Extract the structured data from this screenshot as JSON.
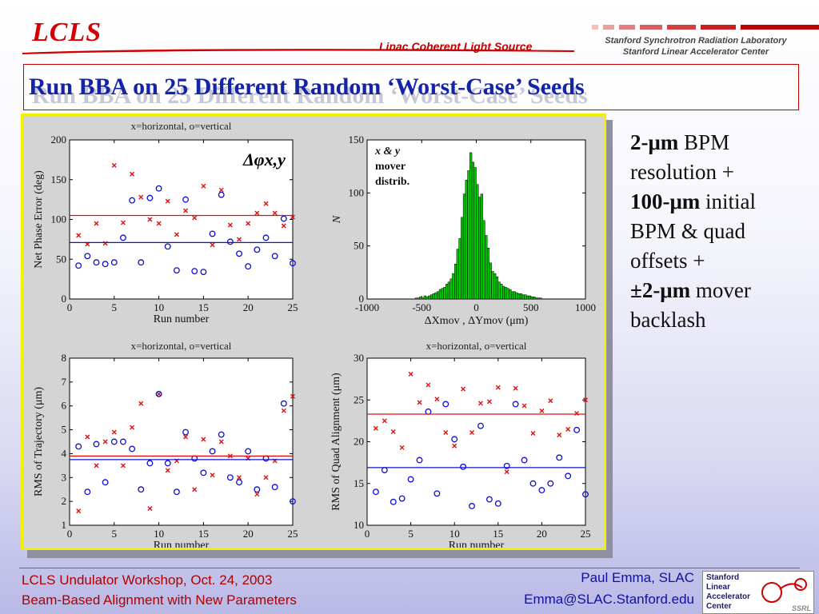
{
  "header": {
    "logo": "LCLS",
    "linac": "Linac Coherent Light Source",
    "ssrl_line1": "Stanford Synchrotron Radiation Laboratory",
    "ssrl_line2": "Stanford Linear Accelerator Center"
  },
  "slide_title": "Run BBA on 25 Different Random ‘Worst-Case’ Seeds",
  "right_text": {
    "l1_bold": "2-μm",
    "l1_rest": " BPM",
    "l2": "resolution +",
    "l3_bold": "100-μm",
    "l3_rest": " initial",
    "l4": "BPM & quad",
    "l5": "offsets +",
    "l6_bold": "±2-μm",
    "l6_rest": " mover",
    "l7": "backlash"
  },
  "footer": {
    "left1": "LCLS Undulator Workshop, Oct. 24, 2003",
    "left2": "Beam-Based Alignment with New Parameters",
    "right1": "Paul Emma, SLAC",
    "right2": "Emma@SLAC.Stanford.edu",
    "org_lines": [
      "Stanford",
      "Linear",
      "Accelerator",
      "Center"
    ],
    "ssrl_mark": "SSRL"
  },
  "colors": {
    "horizontal": "#e01010",
    "vertical": "#1010d0",
    "histogram": "#00cc00",
    "title": "#1424a8",
    "accent": "#c00000"
  },
  "chart_data": [
    {
      "type": "scatter",
      "title": "x=horizontal, o=vertical",
      "annotation": "Δφx,y",
      "xlabel": "Run number",
      "ylabel": "Net Phase Error (deg)",
      "xlim": [
        0,
        25
      ],
      "ylim": [
        0,
        200
      ],
      "xticks": [
        "0",
        "5",
        "10",
        "15",
        "20",
        "25"
      ],
      "yticks": [
        "0",
        "50",
        "100",
        "150",
        "200"
      ],
      "series": [
        {
          "marker": "x",
          "color": "#e01010",
          "x": [
            1,
            2,
            3,
            4,
            5,
            6,
            7,
            8,
            9,
            10,
            11,
            12,
            13,
            14,
            15,
            16,
            17,
            18,
            19,
            20,
            21,
            22,
            23,
            24,
            25
          ],
          "y": [
            80,
            69,
            95,
            70,
            168,
            96,
            157,
            128,
            100,
            95,
            123,
            81,
            111,
            102,
            142,
            68,
            137,
            93,
            75,
            95,
            108,
            120,
            108,
            92,
            103
          ]
        },
        {
          "marker": "o",
          "color": "#1010d0",
          "x": [
            1,
            2,
            3,
            4,
            5,
            6,
            7,
            8,
            9,
            10,
            11,
            12,
            13,
            14,
            15,
            16,
            17,
            18,
            19,
            20,
            21,
            22,
            23,
            24,
            25
          ],
          "y": [
            42,
            54,
            46,
            44,
            46,
            77,
            124,
            46,
            127,
            139,
            66,
            36,
            125,
            35,
            34,
            82,
            131,
            72,
            57,
            41,
            62,
            77,
            54,
            101,
            45
          ]
        },
        {
          "marker": "hline",
          "color": "#e01010",
          "y": [
            105
          ]
        },
        {
          "marker": "hline",
          "color": "#1010d0",
          "y": [
            71
          ]
        }
      ]
    },
    {
      "type": "bar",
      "title": "",
      "annotation": "x & y mover distrib.",
      "xlabel": "ΔXmov , ΔYmov (μm)",
      "ylabel": "N",
      "xlim": [
        -1000,
        1000
      ],
      "ylim": [
        0,
        150
      ],
      "xticks": [
        "-1000",
        "-500",
        "0",
        "500",
        "1000"
      ],
      "yticks": [
        "0",
        "50",
        "100",
        "150"
      ],
      "bin_width": 20,
      "bin_centers": [
        -550,
        -530,
        -510,
        -490,
        -470,
        -450,
        -430,
        -410,
        -390,
        -370,
        -350,
        -330,
        -310,
        -290,
        -270,
        -250,
        -230,
        -210,
        -190,
        -170,
        -150,
        -130,
        -110,
        -90,
        -70,
        -50,
        -30,
        -10,
        10,
        30,
        50,
        70,
        90,
        110,
        130,
        150,
        170,
        190,
        210,
        230,
        250,
        270,
        290,
        310,
        330,
        350,
        370,
        390,
        410,
        430,
        450,
        470,
        490,
        510,
        530,
        550,
        570,
        590
      ],
      "values": [
        1,
        1,
        2,
        1,
        3,
        2,
        3,
        4,
        5,
        6,
        7,
        9,
        10,
        11,
        14,
        16,
        19,
        24,
        33,
        47,
        57,
        77,
        99,
        112,
        121,
        138,
        129,
        124,
        108,
        96,
        99,
        74,
        60,
        48,
        34,
        26,
        24,
        21,
        16,
        14,
        12,
        11,
        10,
        9,
        7,
        7,
        6,
        5,
        5,
        4,
        4,
        3,
        3,
        2,
        2,
        1,
        1,
        1
      ]
    },
    {
      "type": "scatter",
      "title": "x=horizontal, o=vertical",
      "xlabel": "Run number",
      "ylabel": "RMS of Trajectory (μm)",
      "xlim": [
        0,
        25
      ],
      "ylim": [
        1,
        8
      ],
      "xticks": [
        "0",
        "5",
        "10",
        "15",
        "20",
        "25"
      ],
      "yticks": [
        "1",
        "2",
        "3",
        "4",
        "5",
        "6",
        "7",
        "8"
      ],
      "series": [
        {
          "marker": "x",
          "color": "#e01010",
          "x": [
            1,
            2,
            3,
            4,
            5,
            6,
            7,
            8,
            9,
            10,
            11,
            12,
            13,
            14,
            15,
            16,
            17,
            18,
            19,
            20,
            21,
            22,
            23,
            24,
            25
          ],
          "y": [
            1.6,
            4.7,
            3.5,
            4.5,
            4.9,
            3.5,
            5.1,
            6.1,
            1.7,
            6.5,
            3.3,
            3.7,
            4.7,
            2.5,
            4.6,
            3.1,
            4.5,
            3.9,
            3.0,
            3.8,
            2.3,
            3.0,
            3.7,
            5.8,
            6.4
          ]
        },
        {
          "marker": "o",
          "color": "#1010d0",
          "x": [
            1,
            2,
            3,
            4,
            5,
            6,
            7,
            8,
            9,
            10,
            11,
            12,
            13,
            14,
            15,
            16,
            17,
            18,
            19,
            20,
            21,
            22,
            23,
            24,
            25
          ],
          "y": [
            4.3,
            2.4,
            4.4,
            2.8,
            4.5,
            4.5,
            4.2,
            2.5,
            3.6,
            6.5,
            3.6,
            2.4,
            4.9,
            3.8,
            3.2,
            4.1,
            4.8,
            3.0,
            2.8,
            4.1,
            2.5,
            3.8,
            2.6,
            6.1,
            2.0
          ]
        },
        {
          "marker": "hline",
          "color": "#e01010",
          "y": [
            3.9
          ]
        },
        {
          "marker": "hline",
          "color": "#1010d0",
          "y": [
            3.75
          ]
        }
      ]
    },
    {
      "type": "scatter",
      "title": "x=horizontal, o=vertical",
      "xlabel": "Run number",
      "ylabel": "RMS of Quad Alignment (μm)",
      "xlim": [
        0,
        25
      ],
      "ylim": [
        10,
        30
      ],
      "xticks": [
        "0",
        "5",
        "10",
        "15",
        "20",
        "25"
      ],
      "yticks": [
        "10",
        "15",
        "20",
        "25",
        "30"
      ],
      "series": [
        {
          "marker": "x",
          "color": "#e01010",
          "x": [
            1,
            2,
            3,
            4,
            5,
            6,
            7,
            8,
            9,
            10,
            11,
            12,
            13,
            14,
            15,
            16,
            17,
            18,
            19,
            20,
            21,
            22,
            23,
            24,
            25
          ],
          "y": [
            21.6,
            22.5,
            21.2,
            19.3,
            28.1,
            24.7,
            26.8,
            25.1,
            21.1,
            19.5,
            26.3,
            21.1,
            24.6,
            24.8,
            26.5,
            16.4,
            26.4,
            24.3,
            21.0,
            23.7,
            24.9,
            20.8,
            21.5,
            23.4,
            25.0
          ]
        },
        {
          "marker": "o",
          "color": "#1010d0",
          "x": [
            1,
            2,
            3,
            4,
            5,
            6,
            7,
            8,
            9,
            10,
            11,
            12,
            13,
            14,
            15,
            16,
            17,
            18,
            19,
            20,
            21,
            22,
            23,
            24,
            25
          ],
          "y": [
            14.0,
            16.6,
            12.8,
            13.2,
            15.5,
            17.8,
            23.6,
            13.8,
            24.5,
            20.3,
            17.0,
            12.3,
            21.9,
            13.1,
            12.6,
            17.1,
            24.5,
            17.8,
            15.0,
            14.2,
            15.0,
            18.1,
            15.9,
            21.4,
            13.7
          ]
        },
        {
          "marker": "hline",
          "color": "#e01010",
          "y": [
            23.3
          ]
        },
        {
          "marker": "hline",
          "color": "#1010d0",
          "y": [
            16.9
          ]
        }
      ]
    }
  ]
}
